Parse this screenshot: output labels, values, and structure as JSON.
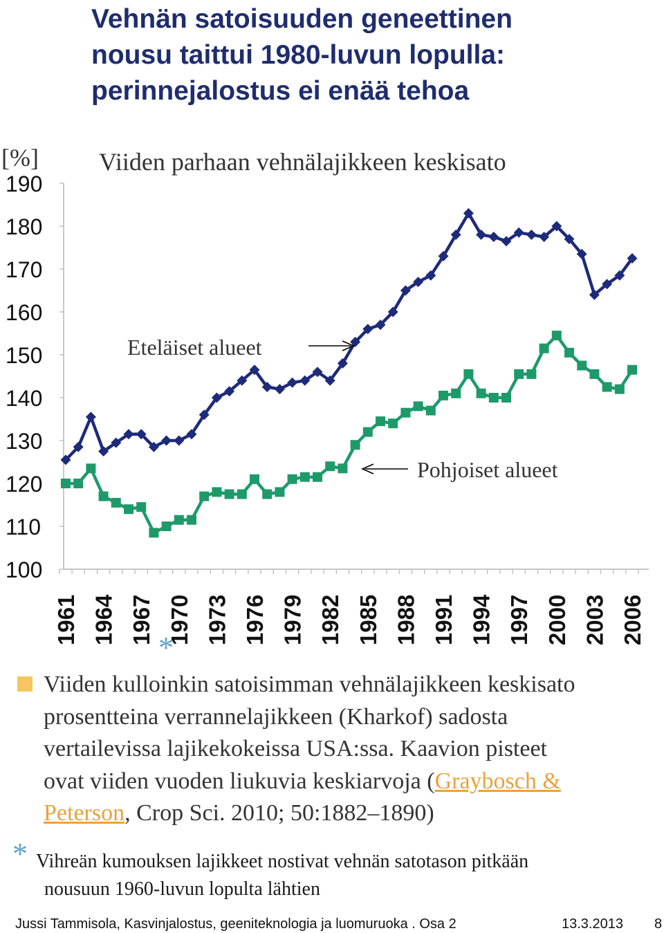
{
  "title": {
    "lines": [
      "Vehnän satoisuuden geneettinen",
      "nousu taittui 1980-luvun lopulla:",
      "perinnejalostus ei enää tehoa"
    ]
  },
  "chart_data": {
    "type": "line",
    "title": "Viiden parhaan vehnälajikkeen keskisato",
    "ylabel": "[%]",
    "ylim": [
      100,
      190
    ],
    "yticks": [
      100,
      110,
      120,
      130,
      140,
      150,
      160,
      170,
      180,
      190
    ],
    "xlim": [
      1961,
      2007
    ],
    "xticks": [
      1961,
      1964,
      1967,
      1970,
      1973,
      1976,
      1979,
      1982,
      1985,
      1988,
      1991,
      1994,
      1997,
      2000,
      2003,
      2006
    ],
    "grid": false,
    "x": [
      1961,
      1962,
      1963,
      1964,
      1965,
      1966,
      1967,
      1968,
      1969,
      1970,
      1971,
      1972,
      1973,
      1974,
      1975,
      1976,
      1977,
      1978,
      1979,
      1980,
      1981,
      1982,
      1983,
      1984,
      1985,
      1986,
      1987,
      1988,
      1989,
      1990,
      1991,
      1992,
      1993,
      1994,
      1995,
      1996,
      1997,
      1998,
      1999,
      2000,
      2001,
      2002,
      2003,
      2004,
      2005,
      2006
    ],
    "series": [
      {
        "name": "Eteläiset alueet",
        "color": "#1e2a7a",
        "marker": "diamond",
        "values": [
          125.5,
          128.5,
          135.5,
          127.5,
          129.5,
          131.5,
          131.5,
          128.5,
          130,
          130,
          131.5,
          136,
          140,
          141.5,
          144,
          146.5,
          142.5,
          142,
          143.5,
          144,
          146,
          144,
          148,
          153,
          156,
          157,
          160,
          165,
          167,
          168.5,
          173,
          178,
          183,
          178,
          177.5,
          176.5,
          178.5,
          178,
          177.5,
          180,
          177,
          173.5,
          164,
          166.5,
          168.5,
          172.5
        ]
      },
      {
        "name": "Pohjoiset alueet",
        "color": "#1e9a6a",
        "marker": "square",
        "values": [
          120,
          120,
          123.5,
          117,
          115.5,
          114,
          114.5,
          108.5,
          110,
          111.5,
          111.5,
          117,
          118,
          117.5,
          117.5,
          121,
          117.5,
          118,
          121,
          121.5,
          121.5,
          124,
          123.5,
          129,
          132,
          134.5,
          134,
          136.5,
          138,
          137,
          140.5,
          141,
          145.5,
          141,
          140,
          140,
          145.5,
          145.5,
          151.5,
          154.5,
          150.5,
          147.5,
          145.5,
          142.5,
          142,
          146.5
        ]
      }
    ],
    "annotations": [
      "Eteläiset alueet",
      "Pohjoiset alueet"
    ]
  },
  "asterisk": "*",
  "caption": {
    "line1": "Viiden kulloinkin satoisimman vehnälajikkeen keskisato",
    "line2": "prosentteina verrannelajikkeen (Kharkof) sadosta",
    "line3": "vertailevissa lajikekokeissa USA:ssa. Kaavion pisteet",
    "line4_pre": "ovat viiden vuoden liukuvia keskiarvoja (",
    "link_part1": "Graybosch &",
    "link_part2": "Peterson",
    "line5_post": ", Crop Sci. 2010; 50:1882–1890)",
    "bullet_color": "#f6c560",
    "link_color": "#e8a33a"
  },
  "note": {
    "line1": "Vihreän kumouksen lajikkeet nostivat vehnän satotason pitkään",
    "line2": "nousuun 1960-luvun lopulta lähtien"
  },
  "footer": {
    "author": "Jussi Tammisola, Kasvinjalostus, geeniteknologia ja luomuruoka . Osa 2",
    "date": "13.3.2013",
    "page": "8"
  }
}
